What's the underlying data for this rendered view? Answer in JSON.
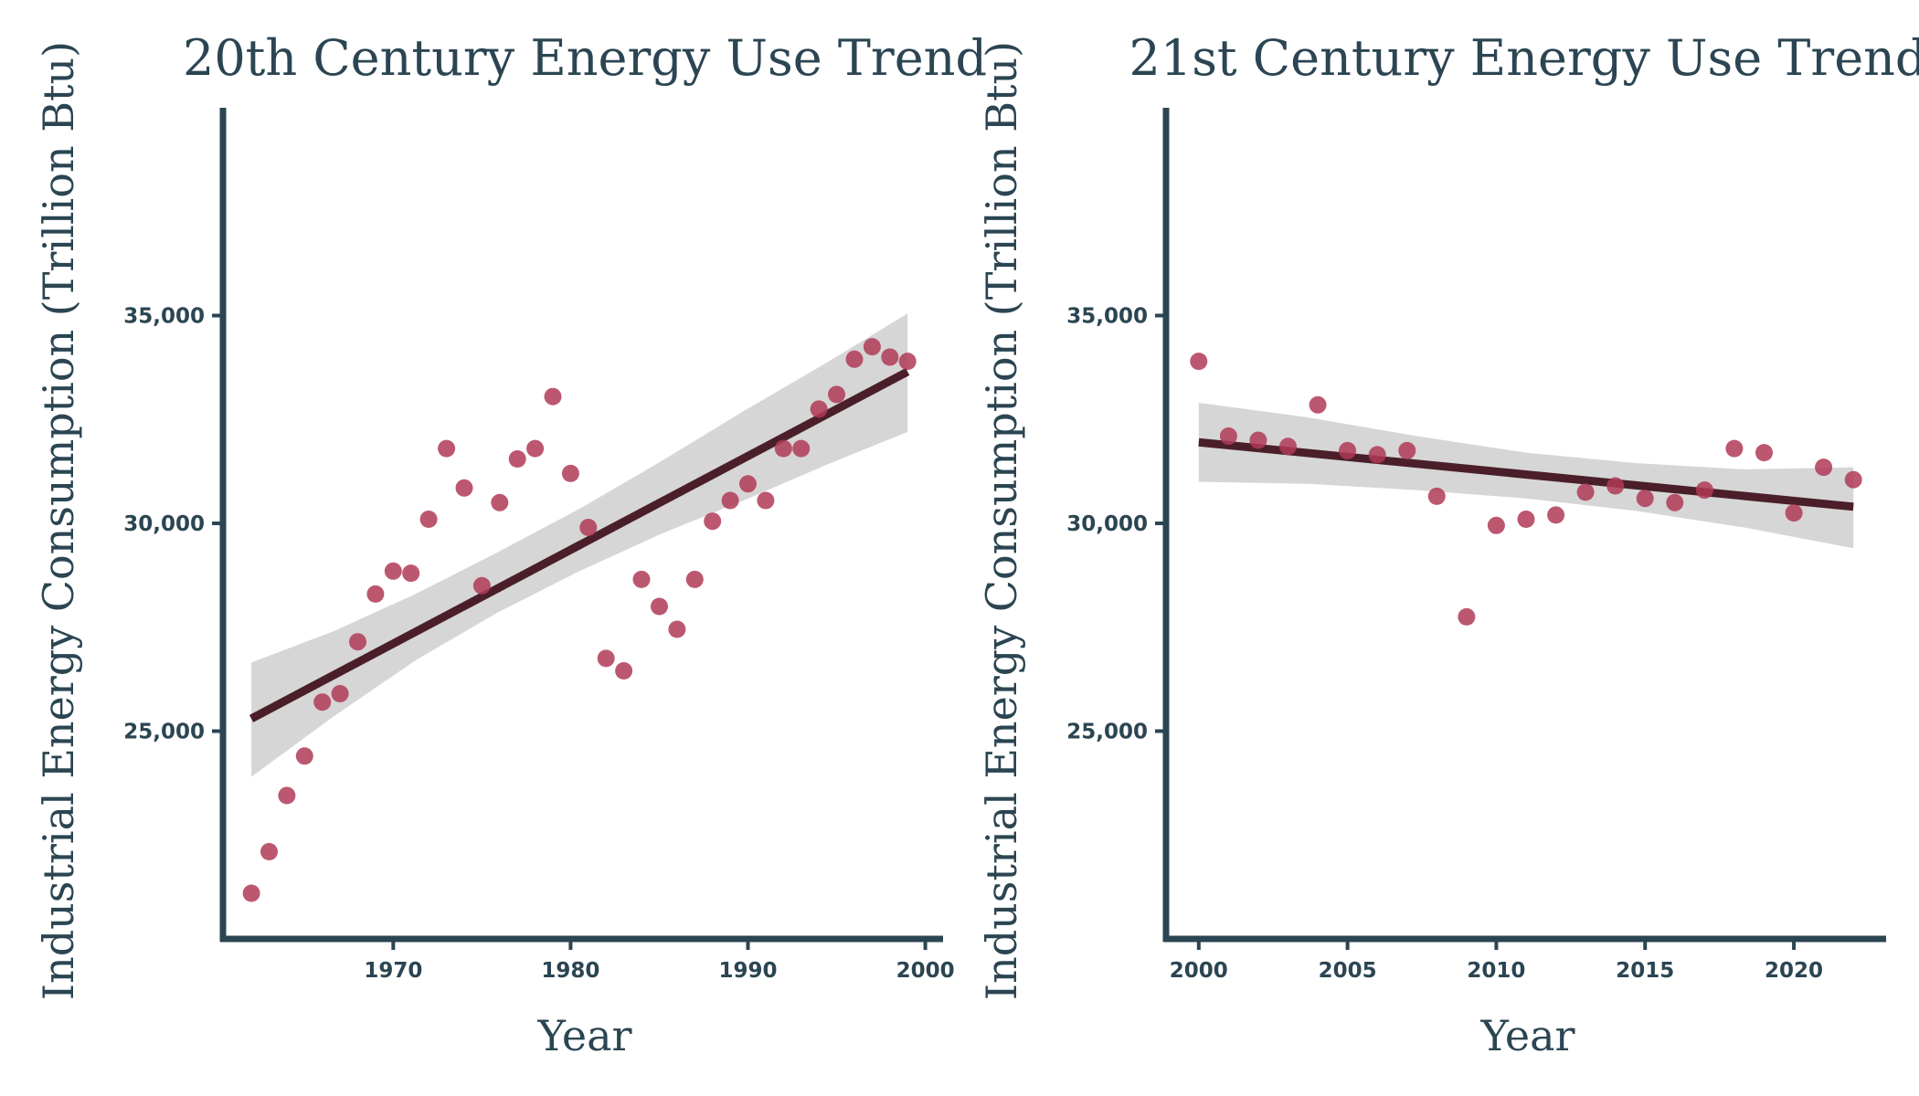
{
  "chart_data": [
    {
      "type": "scatter",
      "title": "20th Century Energy Use Trend",
      "xlabel": "Year",
      "ylabel": "Industrial Energy Consumption (Trillion Btu)",
      "xlim": [
        1960.4,
        2001.0
      ],
      "ylim": [
        20000,
        40000
      ],
      "xticks": [
        1970,
        1980,
        1990,
        2000
      ],
      "xtick_labels": [
        "1970",
        "1980",
        "1990",
        "2000"
      ],
      "yticks": [
        25000,
        30000,
        35000
      ],
      "ytick_labels": [
        "25,000",
        "30,000",
        "35,000"
      ],
      "x": [
        1962,
        1963,
        1964,
        1965,
        1966,
        1967,
        1968,
        1969,
        1970,
        1971,
        1972,
        1973,
        1974,
        1975,
        1976,
        1977,
        1978,
        1979,
        1980,
        1981,
        1982,
        1983,
        1984,
        1985,
        1986,
        1987,
        1988,
        1989,
        1990,
        1991,
        1992,
        1993,
        1994,
        1995,
        1996,
        1997,
        1998,
        1999
      ],
      "y": [
        21100,
        22100,
        23450,
        24400,
        25700,
        25900,
        27150,
        28300,
        28850,
        28800,
        30100,
        31800,
        30850,
        28500,
        30500,
        31550,
        31800,
        33050,
        31200,
        29900,
        26750,
        26450,
        28650,
        28000,
        27450,
        28650,
        30050,
        30550,
        30950,
        30550,
        31800,
        31800,
        32750,
        33100,
        33950,
        34250,
        34000,
        33900
      ],
      "trend": {
        "x_start": 1962,
        "y_start": 25300,
        "x_end": 1999,
        "y_end": 33650,
        "ci_upper": [
          26650,
          27400,
          28300,
          29300,
          30350,
          31500,
          32700,
          33850,
          35050
        ],
        "ci_lower": [
          23900,
          25350,
          26700,
          27850,
          28850,
          29750,
          30550,
          31400,
          32200
        ]
      }
    },
    {
      "type": "scatter",
      "title": "21st Century Energy Use Trend",
      "xlabel": "Year",
      "ylabel": "Industrial Energy Consumption (Trillion Btu)",
      "xlim": [
        1998.9,
        2023.1
      ],
      "ylim": [
        20000,
        40000
      ],
      "xticks": [
        2000,
        2005,
        2010,
        2015,
        2020
      ],
      "xtick_labels": [
        "2000",
        "2005",
        "2010",
        "2015",
        "2020"
      ],
      "yticks": [
        25000,
        30000,
        35000
      ],
      "ytick_labels": [
        "25,000",
        "30,000",
        "35,000"
      ],
      "x": [
        2000,
        2001,
        2002,
        2003,
        2004,
        2005,
        2006,
        2007,
        2008,
        2009,
        2010,
        2011,
        2012,
        2013,
        2014,
        2015,
        2016,
        2017,
        2018,
        2019,
        2020,
        2021,
        2022
      ],
      "y": [
        33900,
        32100,
        32000,
        31850,
        32850,
        31750,
        31650,
        31750,
        30650,
        27750,
        29950,
        30100,
        30200,
        30750,
        30900,
        30600,
        30500,
        30800,
        31800,
        31700,
        30250,
        31350,
        31050
      ],
      "trend": {
        "x_start": 2000,
        "y_start": 31950,
        "x_end": 2022,
        "y_end": 30400,
        "ci_upper": [
          32900,
          32550,
          32100,
          31700,
          31450,
          31300,
          31350
        ],
        "ci_lower": [
          31000,
          30950,
          30800,
          30600,
          30300,
          29900,
          29400
        ]
      }
    }
  ]
}
